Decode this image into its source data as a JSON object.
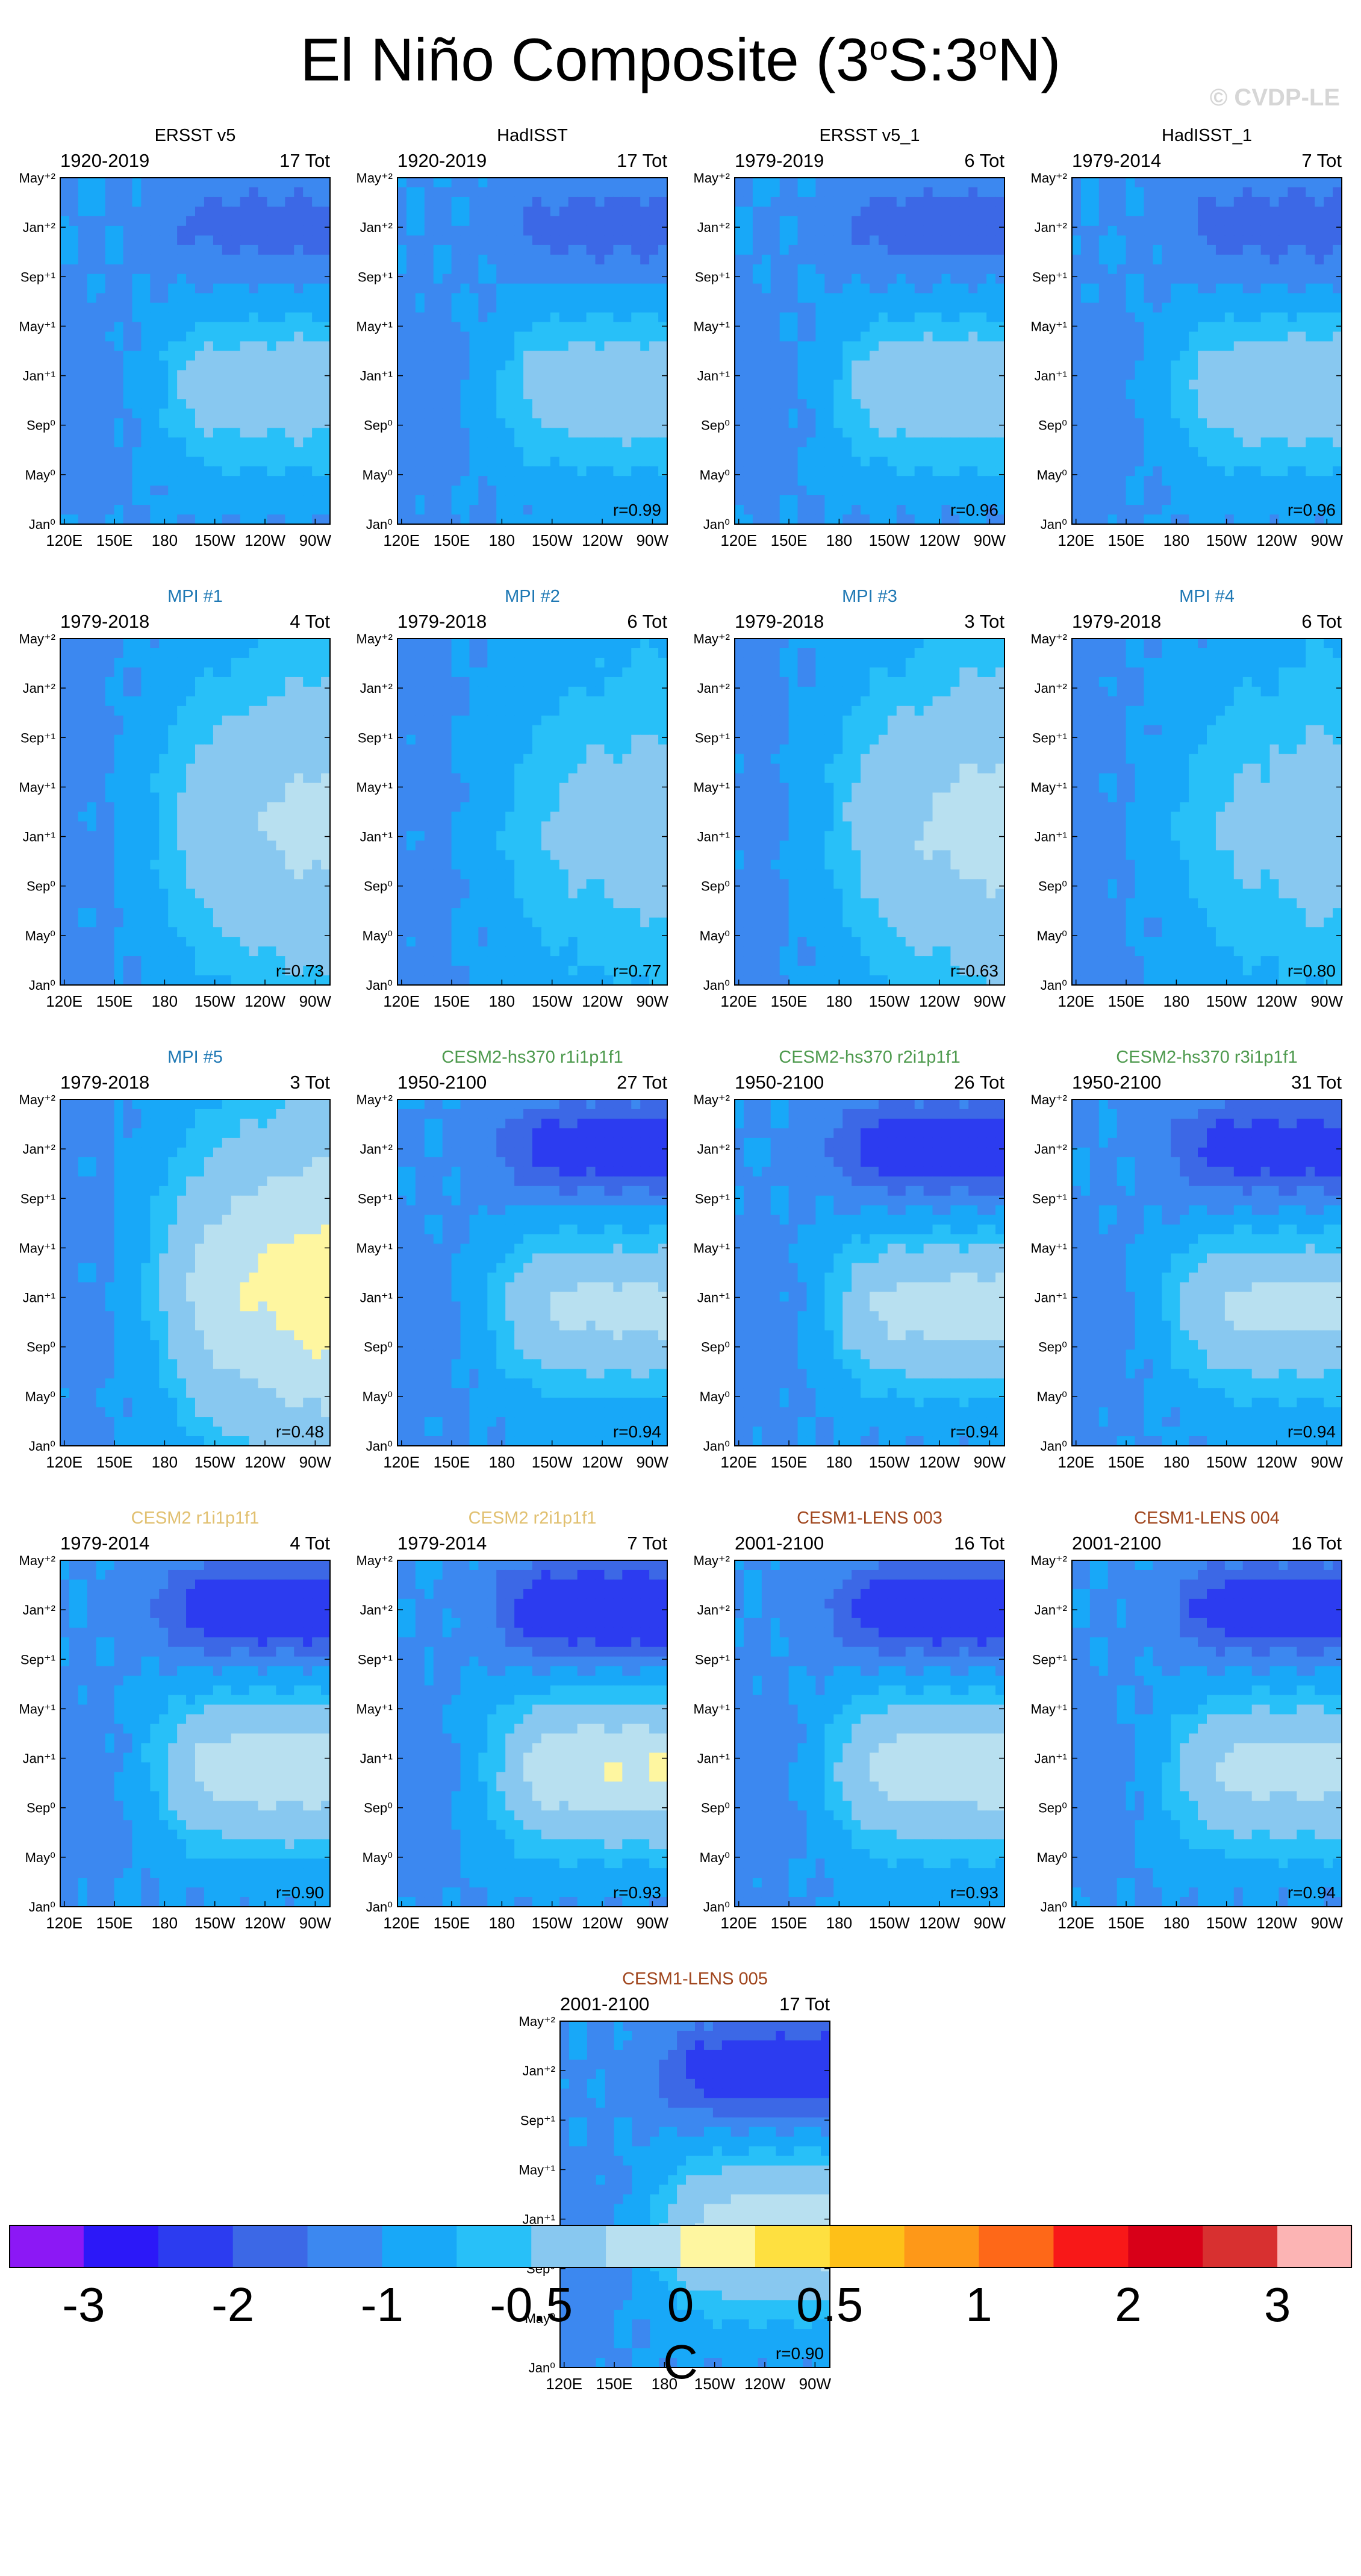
{
  "figure": {
    "title_main": "El Niño Composite (3",
    "title_sup1": "o",
    "title_mid": "S:3",
    "title_sup2": "o",
    "title_end": "N)",
    "watermark": "© CVDP-LE",
    "colorbar_unit": "C"
  },
  "chart_data": {
    "type": "heatmap",
    "x_tick_labels": [
      "120E",
      "150E",
      "180",
      "150W",
      "120W",
      "90W"
    ],
    "y_tick_labels": [
      "Jan⁰",
      "May⁰",
      "Sep⁰",
      "Jan⁺¹",
      "May⁺¹",
      "Sep⁺¹",
      "Jan⁺²",
      "May⁺²"
    ],
    "colorbar": {
      "levels": [
        "-3",
        "-2",
        "-1",
        "-0.5",
        "0",
        "0.5",
        "1",
        "2",
        "3"
      ],
      "colors": [
        "#8c18f5",
        "#2c18f8",
        "#2c3cf0",
        "#3c68e6",
        "#3c88f0",
        "#18a8f8",
        "#28c0f8",
        "#88c8f0",
        "#b8e0f0",
        "#fef6a0",
        "#fee040",
        "#fec018",
        "#fe9818",
        "#fe6818",
        "#f81818",
        "#d80018",
        "#d83030",
        "#fcb4b4"
      ]
    },
    "panels": [
      {
        "title": "ERSST v5",
        "period": "1920-2019",
        "events": "17 Tot",
        "r": "",
        "color": "#000000",
        "profile": "obs",
        "amp": 1.6
      },
      {
        "title": "HadISST",
        "period": "1920-2019",
        "events": "17 Tot",
        "r": "r=0.99",
        "color": "#000000",
        "profile": "obs",
        "amp": 1.6
      },
      {
        "title": "ERSST v5_1",
        "period": "1979-2019",
        "events": "6 Tot",
        "r": "r=0.96",
        "color": "#000000",
        "profile": "obs",
        "amp": 1.7
      },
      {
        "title": "HadISST_1",
        "period": "1979-2014",
        "events": "7 Tot",
        "r": "r=0.96",
        "color": "#000000",
        "profile": "obs",
        "amp": 1.7
      },
      {
        "title": "MPI #1",
        "period": "1979-2018",
        "events": "4 Tot",
        "r": "r=0.73",
        "color": "#1e78b4",
        "profile": "mpi",
        "amp": 1.9
      },
      {
        "title": "MPI #2",
        "period": "1979-2018",
        "events": "6 Tot",
        "r": "r=0.77",
        "color": "#1e78b4",
        "profile": "mpi",
        "amp": 1.2
      },
      {
        "title": "MPI #3",
        "period": "1979-2018",
        "events": "3 Tot",
        "r": "r=0.63",
        "color": "#1e78b4",
        "profile": "mpi",
        "amp": 2.0
      },
      {
        "title": "MPI #4",
        "period": "1979-2018",
        "events": "6 Tot",
        "r": "r=0.80",
        "color": "#1e78b4",
        "profile": "mpi",
        "amp": 1.2
      },
      {
        "title": "MPI #5",
        "period": "1979-2018",
        "events": "3 Tot",
        "r": "r=0.48",
        "color": "#1e78b4",
        "profile": "mpi",
        "amp": 3.0
      },
      {
        "title": "CESM2-hs370 r1i1p1f1",
        "period": "1950-2100",
        "events": "27 Tot",
        "r": "r=0.94",
        "color": "#4e9a4e",
        "profile": "cesm",
        "amp": 2.3
      },
      {
        "title": "CESM2-hs370 r2i1p1f1",
        "period": "1950-2100",
        "events": "26 Tot",
        "r": "r=0.94",
        "color": "#4e9a4e",
        "profile": "cesm",
        "amp": 2.5
      },
      {
        "title": "CESM2-hs370 r3i1p1f1",
        "period": "1950-2100",
        "events": "31 Tot",
        "r": "r=0.94",
        "color": "#4e9a4e",
        "profile": "cesm",
        "amp": 2.3
      },
      {
        "title": "CESM2 r1i1p1f1",
        "period": "1979-2014",
        "events": "4 Tot",
        "r": "r=0.90",
        "color": "#e1c070",
        "profile": "cesm",
        "amp": 2.7
      },
      {
        "title": "CESM2 r2i1p1f1",
        "period": "1979-2014",
        "events": "7 Tot",
        "r": "r=0.93",
        "color": "#e1c070",
        "profile": "cesm",
        "amp": 3.0
      },
      {
        "title": "CESM1-LENS 003",
        "period": "2001-2100",
        "events": "16 Tot",
        "r": "r=0.93",
        "color": "#a0461e",
        "profile": "cesm",
        "amp": 2.7
      },
      {
        "title": "CESM1-LENS 004",
        "period": "2001-2100",
        "events": "16 Tot",
        "r": "r=0.94",
        "color": "#a0461e",
        "profile": "cesm",
        "amp": 2.4
      },
      {
        "title": "CESM1-LENS 005",
        "period": "2001-2100",
        "events": "17 Tot",
        "r": "r=0.90",
        "color": "#a0461e",
        "profile": "cesm",
        "amp": 2.6
      }
    ]
  }
}
